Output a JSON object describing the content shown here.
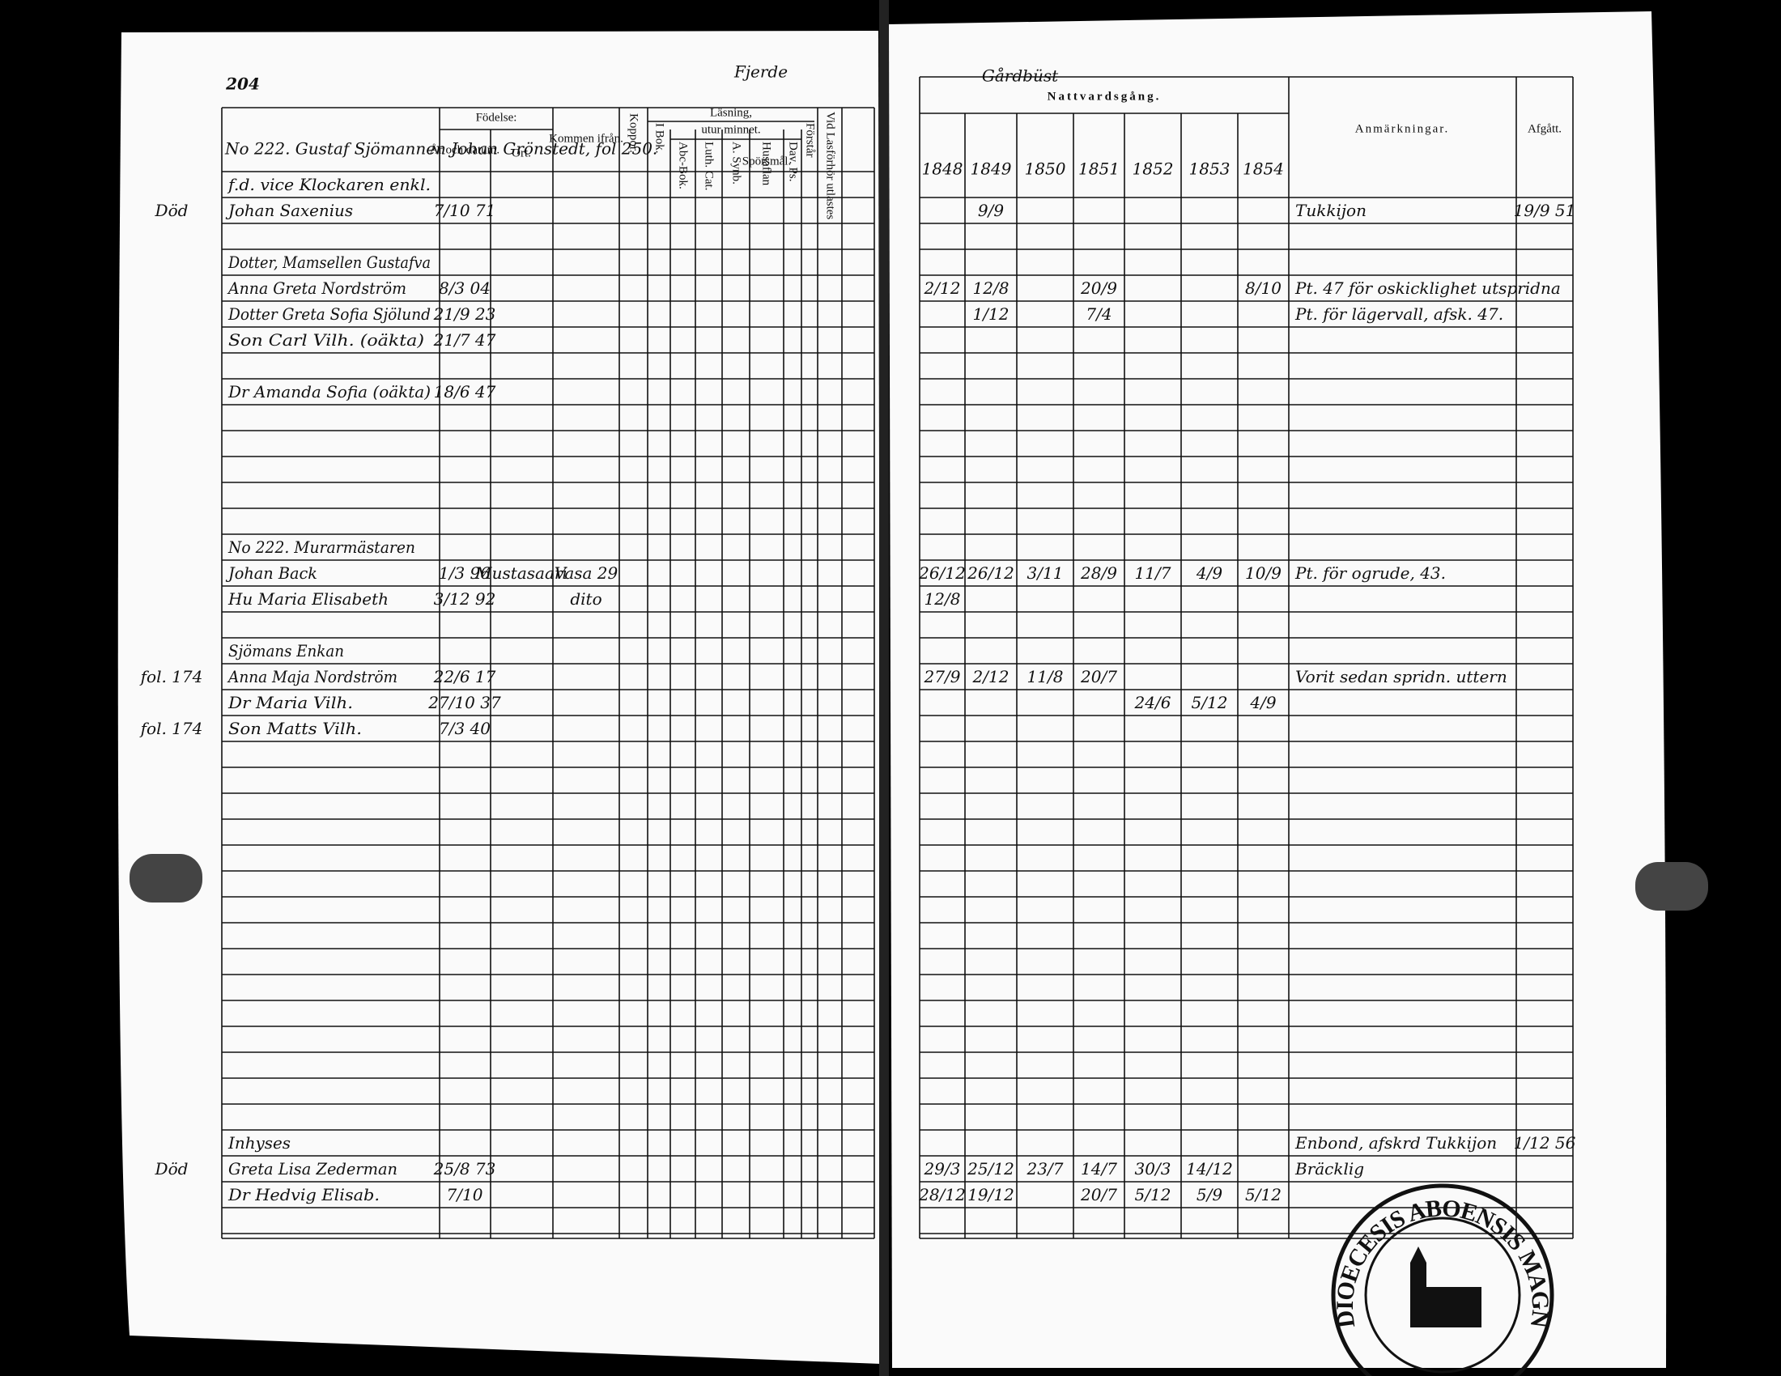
{
  "header": {
    "page_number": "204",
    "left_title": "Fjerde",
    "right_title": "Gårdbüst",
    "left_note": "No 222. Gustaf Sjömannen Johan Grönstedt, fol 250."
  },
  "left_columns": {
    "birth_group": "Födelse:",
    "year_date": "År och datum.",
    "place": "Ort.",
    "came_from": "Kommen ifrån.",
    "smallpox": "Koppor.",
    "reading_group": "Läsning,",
    "memory_group": "utur minnet.",
    "in_book": "I Bok.",
    "abc_book": "Abc-Bok.",
    "luth_cat": "Luth. Cat.",
    "synb": "A. Synb.",
    "house_table": "Husaflan",
    "questions": "Spörsmål.",
    "psalms": "Dav. Ps.",
    "understands": "Förstår",
    "examination": "Vid Lasförhör utlastes"
  },
  "right_columns": {
    "communion": "Nattvardsgång.",
    "years": [
      "1848",
      "1849",
      "1850",
      "1851",
      "1852",
      "1853",
      "1854"
    ],
    "remarks": "Anmärkningar.",
    "departed": "Afgått."
  },
  "entries": [
    {
      "name": "f.d. vice Klockaren enkl."
    },
    {
      "name": "Johan Saxenius",
      "birth": "7/10 71",
      "margin": "Död",
      "communion": [
        null,
        "9/9",
        null,
        null,
        null,
        null,
        null
      ],
      "remarks": "Tukkijon",
      "departed": "19/9 51"
    },
    {
      "name": "Dotter, Mamsellen Gustafva"
    },
    {
      "name": "Anna Greta Nordström",
      "birth": "8/3 04",
      "communion": [
        "2/12",
        "12/8",
        null,
        "20/9",
        null,
        null,
        "8/10"
      ],
      "remarks": "Pt. 47 för oskicklighet utspridna"
    },
    {
      "name": "Dotter Greta Sofia Sjölund",
      "birth": "21/9 23",
      "communion": [
        null,
        "1/12",
        null,
        "7/4",
        null,
        null,
        null
      ],
      "remarks": "Pt. för lägervall, afsk. 47."
    },
    {
      "name": "Son Carl Vilh. (oäkta)",
      "birth": "21/7 47"
    },
    {
      "name": "Dr Amanda Sofia (oäkta)",
      "birth": "18/6 47"
    },
    {
      "name": "No 222. Murarmästaren"
    },
    {
      "name": "Johan Back",
      "birth": "1/3 96",
      "place": "Mustasaari",
      "from": "Vasa 29",
      "communion": [
        "26/12",
        "26/12",
        "3/11",
        "28/9",
        "11/7",
        "4/9",
        "10/9"
      ],
      "remarks": "Pt. för ogrude, 43."
    },
    {
      "name": "Hu Maria Elisabeth",
      "birth": "3/12 92",
      "from": "dito",
      "communion": [
        "12/8",
        null,
        null,
        null,
        null,
        null,
        null
      ]
    },
    {
      "name": "Sjömans Enkan"
    },
    {
      "name": "Anna Maja Nordström",
      "birth": "22/6 17",
      "margin": "fol. 174",
      "communion": [
        "27/9",
        "2/12",
        "11/8",
        "20/7",
        null,
        null,
        null
      ],
      "remarks": "Vorit sedan spridn. uttern"
    },
    {
      "name": "Dr Maria Vilh.",
      "birth": "27/10 37",
      "communion": [
        null,
        null,
        null,
        null,
        "24/6",
        "5/12",
        "4/9"
      ]
    },
    {
      "name": "Son Matts Vilh.",
      "birth": "7/3 40",
      "margin": "fol. 174"
    },
    {
      "name": "Inhyses",
      "remarks": "Enbond, afskrd Tukkijon",
      "departed": "1/12 56"
    },
    {
      "name": "Greta Lisa Zederman",
      "birth": "25/8 73",
      "margin": "Död",
      "communion": [
        "29/3",
        "25/12",
        "23/7",
        "14/7",
        "30/3",
        "14/12",
        null
      ],
      "remarks": "Bräcklig"
    },
    {
      "name": "Dr Hedvig Elisab.",
      "birth": "7/10",
      "communion": [
        "28/12",
        "19/12",
        null,
        "20/7",
        "5/12",
        "5/9",
        "5/12"
      ]
    }
  ],
  "stamp": {
    "text": "DIOECESIS ABOENSIS MAGN"
  }
}
